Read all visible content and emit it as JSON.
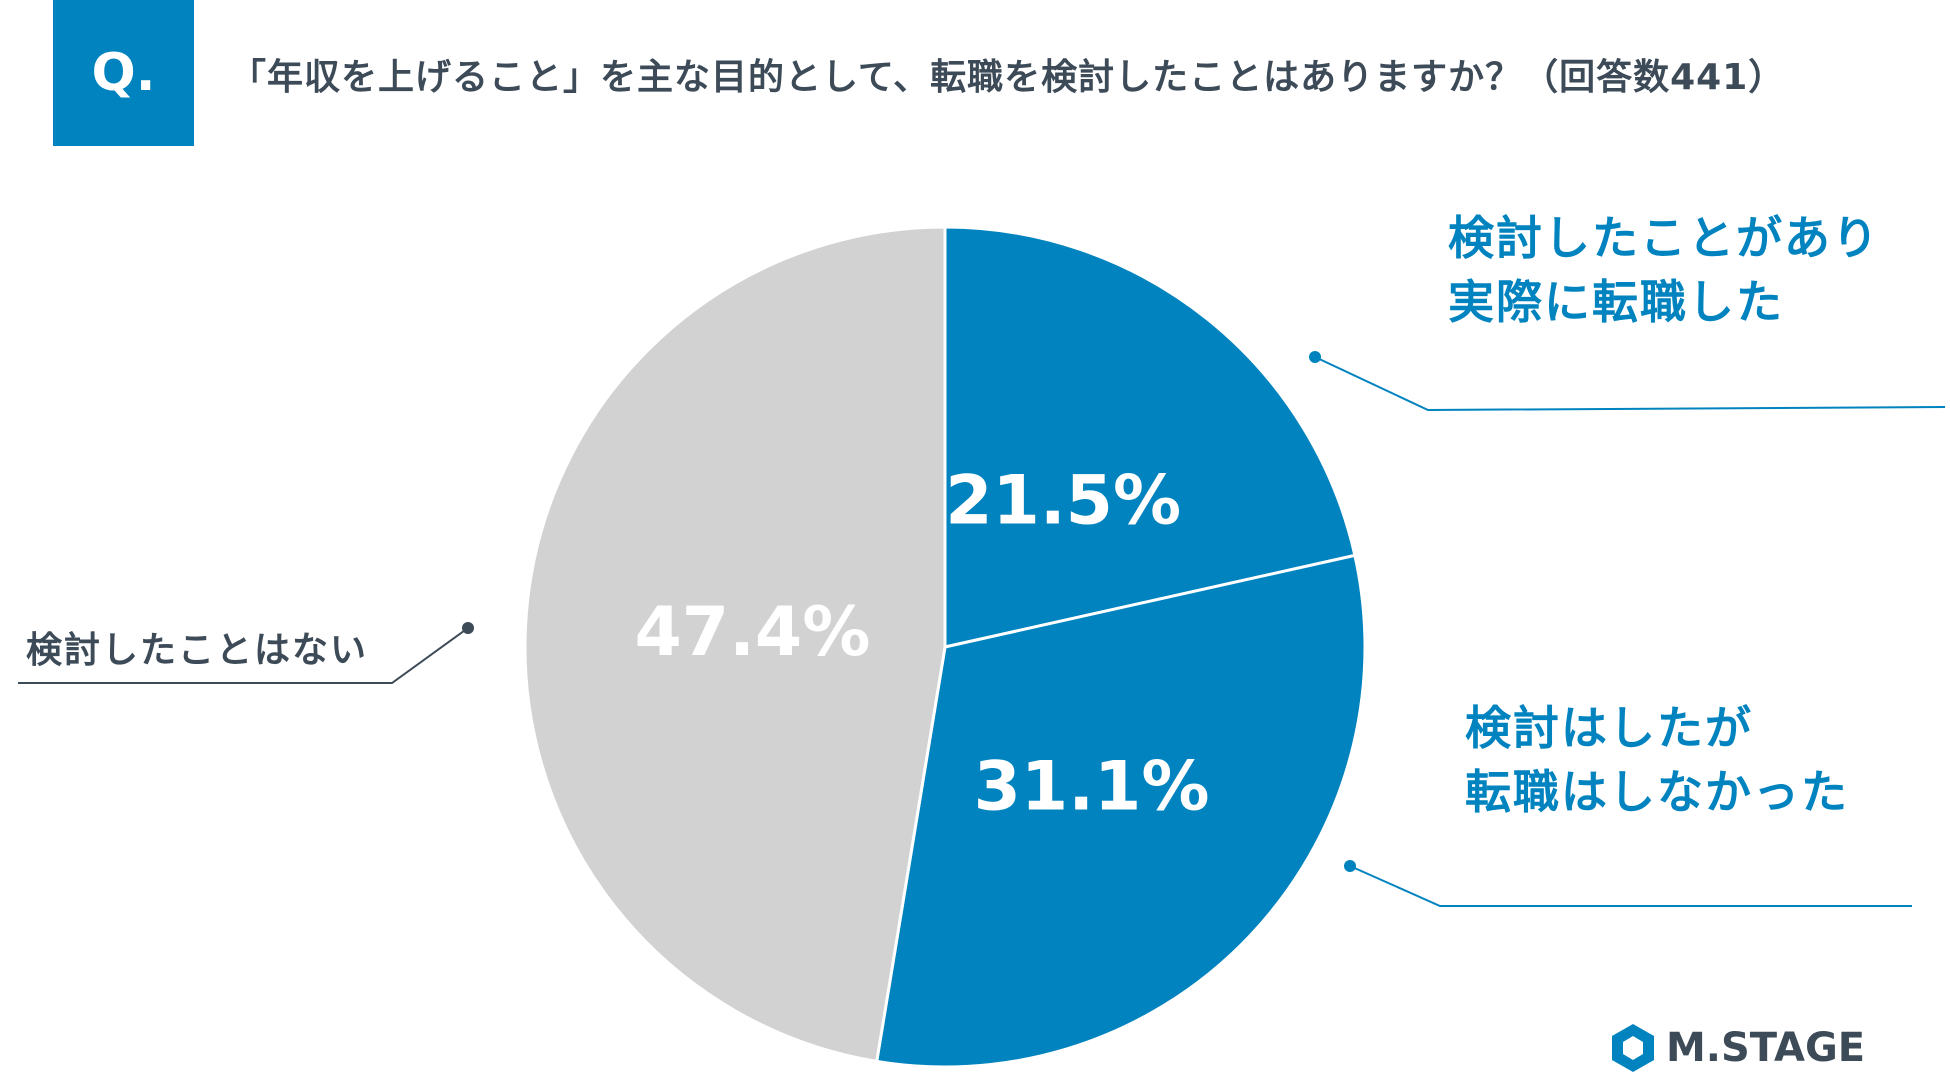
{
  "header": {
    "badge": "Q.",
    "question": "「年収を上げること」を主な目的として、転職を検討したことはありますか？（回答数441）"
  },
  "chart_data": {
    "type": "pie",
    "start_angle_deg": 0,
    "direction": "clockwise",
    "slices": [
      {
        "label_lines": [
          "検討したことがあり",
          "実際に転職した"
        ],
        "value": 21.5,
        "value_label": "21.5%",
        "color": "#0083be",
        "value_text_color": "#ffffff"
      },
      {
        "label_lines": [
          "検討はしたが",
          "転職はしなかった"
        ],
        "value": 31.1,
        "value_label": "31.1%",
        "color": "#0083be",
        "value_text_color": "#ffffff"
      },
      {
        "label_lines": [
          "検討したことはない"
        ],
        "value": 47.4,
        "value_label": "47.4%",
        "color": "#d3d2d3",
        "value_text_color": "#ffffff"
      }
    ],
    "label_colors": {
      "blue": "#0083be",
      "gray": "#3d4a57"
    }
  },
  "footer": {
    "logo_text": "M.STAGE"
  }
}
